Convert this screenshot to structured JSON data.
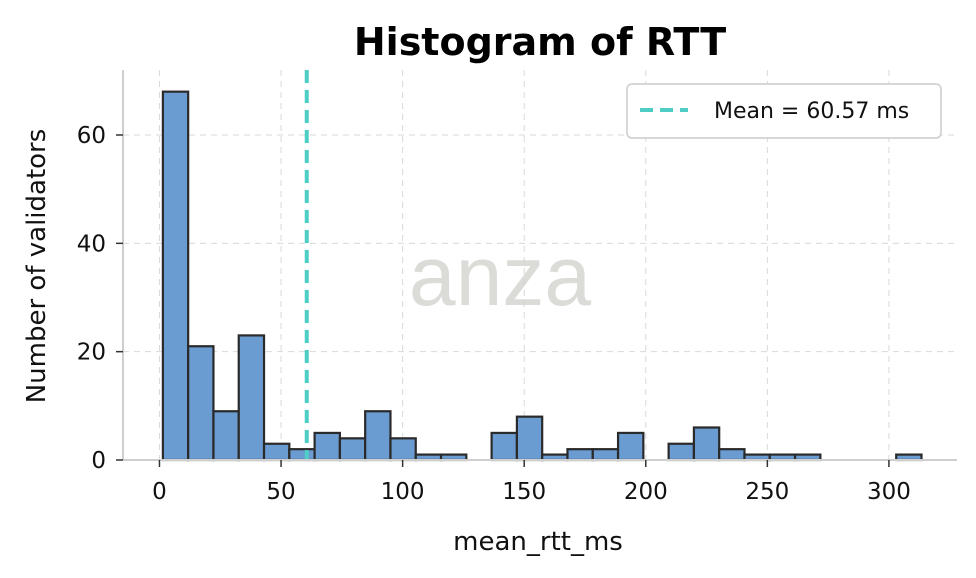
{
  "watermark": "anza",
  "chart_data": {
    "type": "bar",
    "title": "Histogram of RTT",
    "xlabel": "mean_rtt_ms",
    "ylabel": "Number of validators",
    "xlim": [
      -15,
      328
    ],
    "ylim": [
      0,
      72
    ],
    "xticks": [
      0,
      50,
      100,
      150,
      200,
      250,
      300
    ],
    "yticks": [
      0,
      20,
      40,
      60
    ],
    "grid": true,
    "legend_position": "upper right",
    "bar_color": "#6a9bd1",
    "bar_edge_color": "#2a2a2a",
    "bin_edges": [
      1.4,
      11.8,
      22.2,
      32.6,
      43.0,
      53.4,
      63.8,
      74.2,
      84.6,
      95.0,
      105.4,
      115.8,
      126.2,
      136.6,
      147.0,
      157.4,
      167.8,
      178.2,
      188.6,
      199.0,
      209.4,
      219.8,
      230.2,
      240.6,
      251.0,
      261.4,
      271.8,
      282.2,
      292.6,
      303.0,
      313.4
    ],
    "counts": [
      68,
      21,
      9,
      23,
      3,
      2,
      5,
      4,
      9,
      4,
      1,
      1,
      0,
      5,
      8,
      1,
      2,
      2,
      5,
      0,
      3,
      6,
      2,
      1,
      1,
      1,
      0,
      0,
      0,
      1
    ],
    "mean_line": {
      "value": 60.57,
      "label": "Mean = 60.57 ms",
      "color": "#4ecdc4",
      "style": "dashed"
    }
  }
}
